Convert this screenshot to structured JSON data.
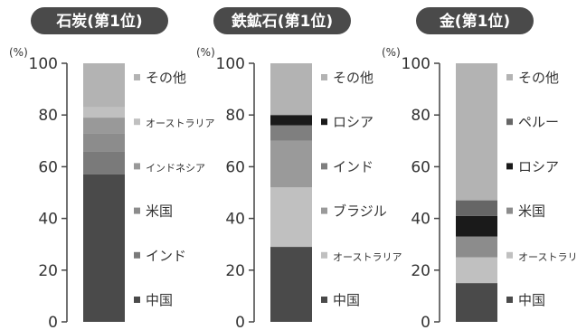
{
  "chart_data": [
    {
      "type": "bar",
      "title": "石炭(第1位)",
      "ylabel": "(%)",
      "ylim": [
        0,
        100
      ],
      "yticks": [
        0,
        20,
        40,
        60,
        80,
        100
      ],
      "grid": false,
      "stacked": true,
      "legend_position": "right",
      "series": [
        {
          "name": "中国",
          "value": 57,
          "color": "#4a4a4a"
        },
        {
          "name": "インド",
          "value": 9,
          "color": "#7a7a7a"
        },
        {
          "name": "米国",
          "value": 7,
          "color": "#8c8c8c"
        },
        {
          "name": "インドネシア",
          "value": 6,
          "color": "#999999"
        },
        {
          "name": "オーストラリア",
          "value": 4,
          "color": "#c0c0c0"
        },
        {
          "name": "その他",
          "value": 17,
          "color": "#b3b3b3"
        }
      ]
    },
    {
      "type": "bar",
      "title": "鉄鉱石(第1位)",
      "ylabel": "(%)",
      "ylim": [
        0,
        100
      ],
      "yticks": [
        0,
        20,
        40,
        60,
        80,
        100
      ],
      "grid": false,
      "stacked": true,
      "legend_position": "right",
      "series": [
        {
          "name": "中国",
          "value": 29,
          "color": "#4a4a4a"
        },
        {
          "name": "オーストラリア",
          "value": 23,
          "color": "#c0c0c0"
        },
        {
          "name": "ブラジル",
          "value": 18,
          "color": "#9a9a9a"
        },
        {
          "name": "インド",
          "value": 6,
          "color": "#7f7f7f"
        },
        {
          "name": "ロシア",
          "value": 4,
          "color": "#1a1a1a"
        },
        {
          "name": "その他",
          "value": 20,
          "color": "#b3b3b3"
        }
      ]
    },
    {
      "type": "bar",
      "title": "金(第1位)",
      "ylabel": "(%)",
      "ylim": [
        0,
        100
      ],
      "yticks": [
        0,
        20,
        40,
        60,
        80,
        100
      ],
      "grid": false,
      "stacked": true,
      "legend_position": "right",
      "series": [
        {
          "name": "中国",
          "value": 15,
          "color": "#4a4a4a"
        },
        {
          "name": "オーストラリア",
          "value": 10,
          "color": "#c0c0c0"
        },
        {
          "name": "米国",
          "value": 8,
          "color": "#8c8c8c"
        },
        {
          "name": "ロシア",
          "value": 8,
          "color": "#1a1a1a"
        },
        {
          "name": "ペルー",
          "value": 6,
          "color": "#666666"
        },
        {
          "name": "その他",
          "value": 53,
          "color": "#b3b3b3"
        }
      ]
    }
  ],
  "colors": {
    "title_pill": "#4a4a4a",
    "title_text": "#ffffff",
    "axis": "#444444",
    "label_text": "#333333"
  }
}
